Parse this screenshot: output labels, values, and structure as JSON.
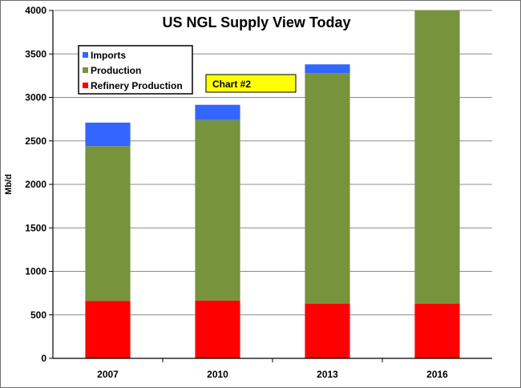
{
  "chart_data": {
    "type": "bar",
    "stacked": true,
    "title": "US NGL Supply View Today",
    "xlabel": "",
    "ylabel": "Mb/d",
    "ylim": [
      0,
      4000
    ],
    "yticks": [
      0,
      500,
      1000,
      1500,
      2000,
      2500,
      3000,
      3500,
      4000
    ],
    "grid": true,
    "legend_position": "top-left",
    "categories": [
      "2007",
      "2010",
      "2013",
      "2016"
    ],
    "series": [
      {
        "name": "Refinery Production",
        "color": "#ff0000",
        "values": [
          660,
          665,
          630,
          630
        ]
      },
      {
        "name": "Production",
        "color": "#77933c",
        "values": [
          1780,
          2075,
          2650,
          3370
        ]
      },
      {
        "name": "Imports",
        "color": "#3366ff",
        "values": [
          270,
          175,
          100,
          0
        ]
      }
    ],
    "legend_order": [
      "Imports",
      "Production",
      "Refinery Production"
    ],
    "annotation": {
      "text": "Chart #2",
      "fill": "#ffff00"
    }
  }
}
